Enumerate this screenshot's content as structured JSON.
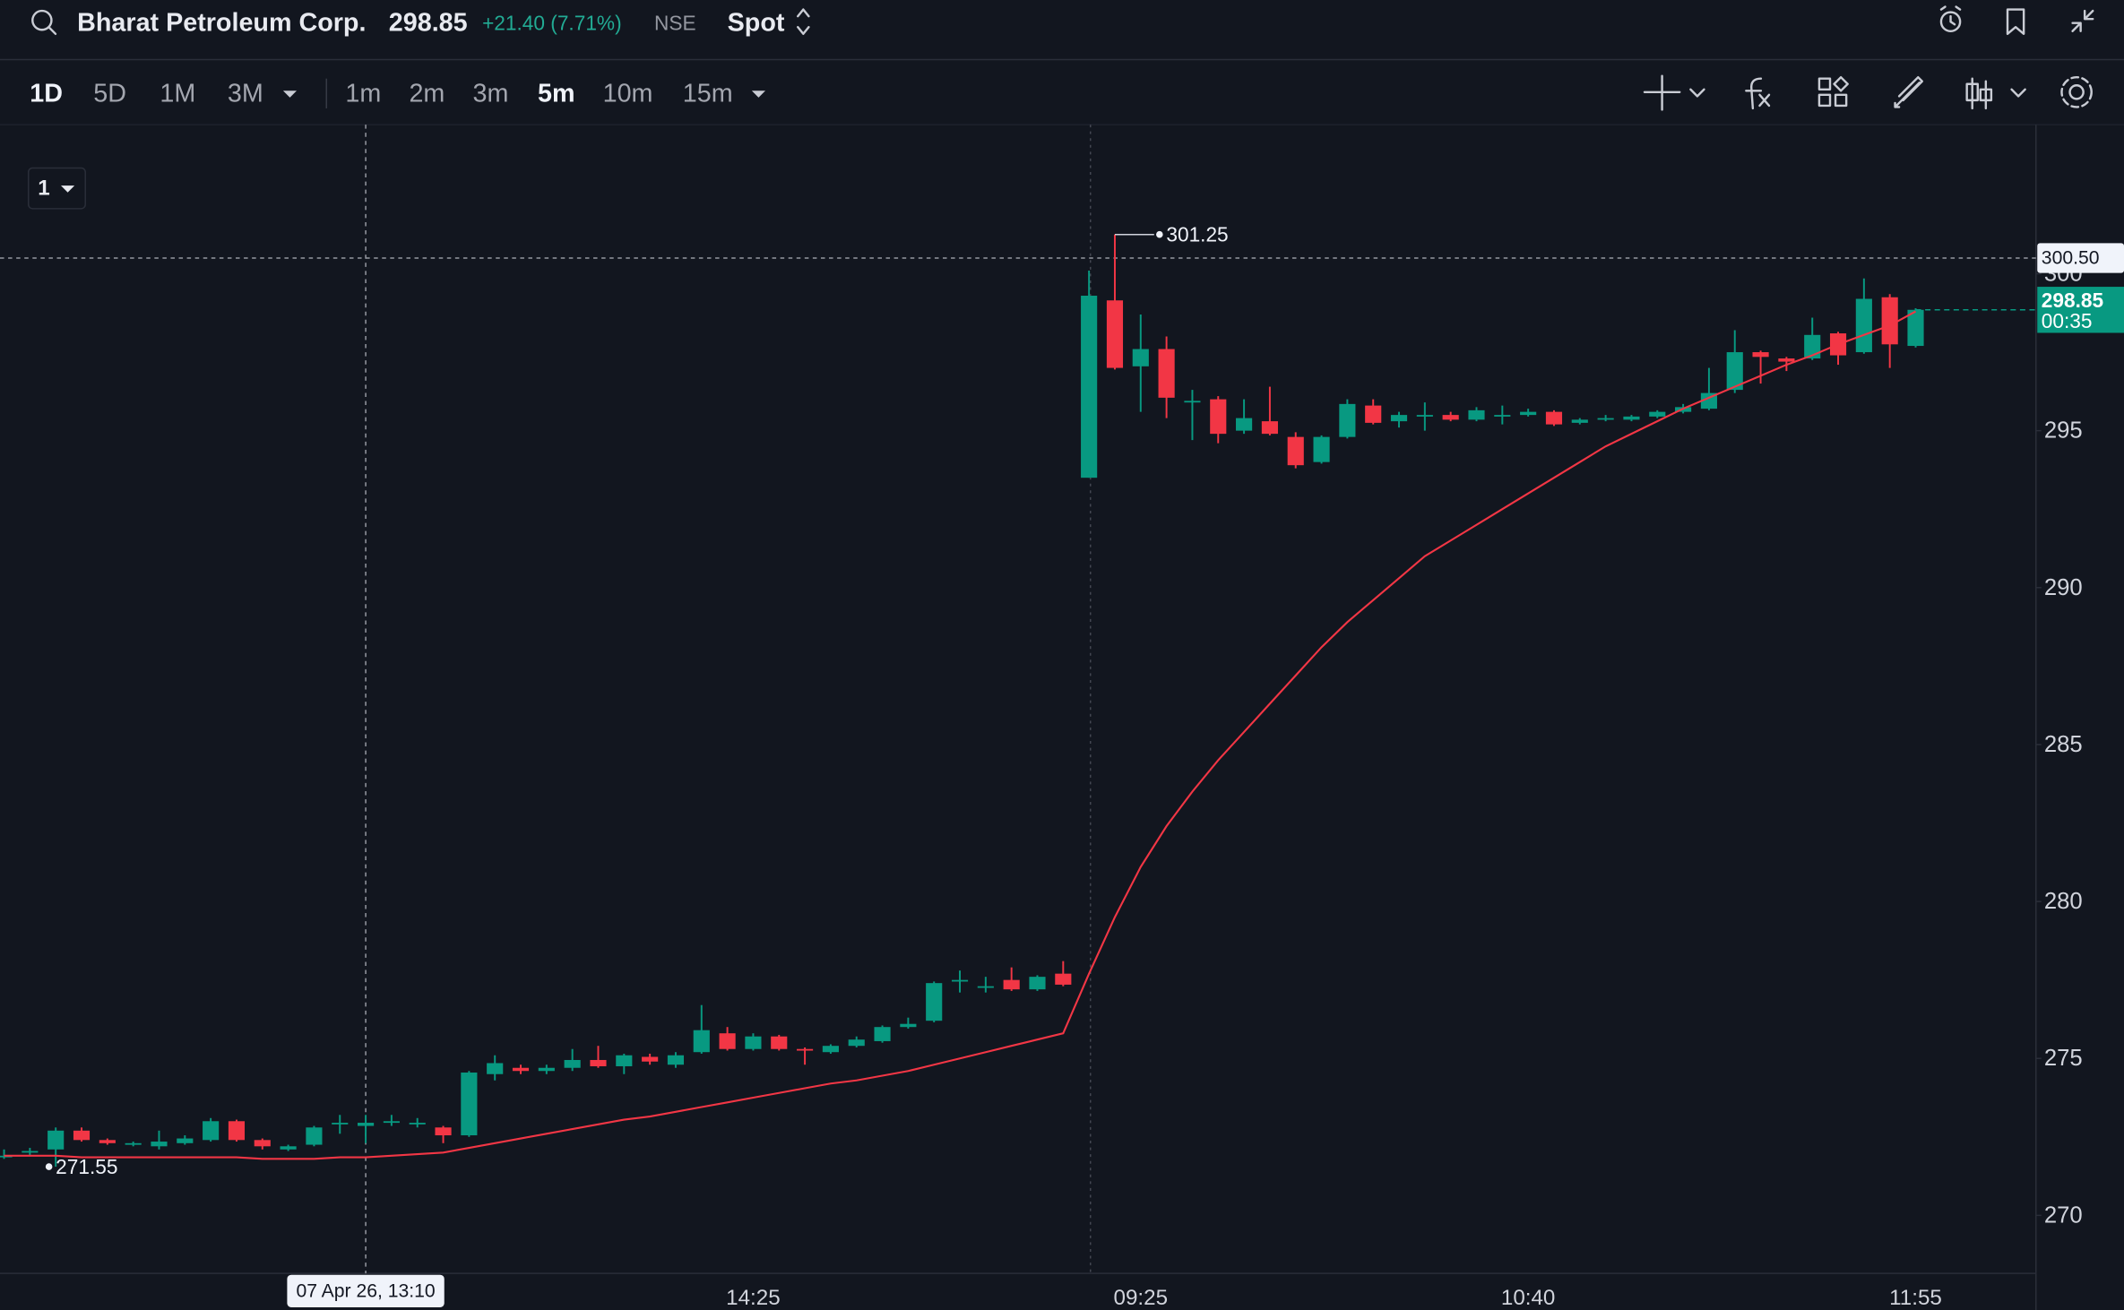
{
  "header": {
    "symbol": "Bharat Petroleum Corp.",
    "price": "298.85",
    "change": "+21.40 (7.71%)",
    "exchange": "NSE",
    "mode": "Spot"
  },
  "toolbar": {
    "ranges": [
      "1D",
      "5D",
      "1M",
      "3M"
    ],
    "intervals": [
      "1m",
      "2m",
      "3m",
      "5m",
      "10m",
      "15m"
    ],
    "pane": "1"
  },
  "chart_data": {
    "type": "candlestick",
    "categories": [
      null,
      null,
      null,
      null,
      null,
      null,
      null,
      null,
      null,
      null,
      null,
      null,
      null,
      null,
      null,
      null,
      null,
      null,
      null,
      null,
      null,
      null,
      null,
      null,
      null,
      null,
      null,
      null,
      null,
      "14:25",
      null,
      null,
      null,
      null,
      null,
      null,
      null,
      null,
      null,
      null,
      null,
      null,
      null,
      null,
      "09:25",
      null,
      null,
      null,
      null,
      null,
      null,
      null,
      null,
      null,
      null,
      null,
      null,
      null,
      null,
      "10:40",
      null,
      null,
      null,
      null,
      null,
      null,
      null,
      null,
      null,
      null,
      null,
      null,
      null,
      null,
      "11:55"
    ],
    "open": [
      271.9,
      272.0,
      272.1,
      272.7,
      272.4,
      272.3,
      272.2,
      272.3,
      272.4,
      273.0,
      272.4,
      272.1,
      272.25,
      272.9,
      272.85,
      273.0,
      272.95,
      272.8,
      272.55,
      274.5,
      274.7,
      274.6,
      274.7,
      274.95,
      274.75,
      275.05,
      274.8,
      275.2,
      275.8,
      275.3,
      275.7,
      275.3,
      275.2,
      275.4,
      275.55,
      276.0,
      276.2,
      277.5,
      277.3,
      277.5,
      277.2,
      277.7,
      293.5,
      299.15,
      297.05,
      297.6,
      295.9,
      296.0,
      295.0,
      295.3,
      294.8,
      294.0,
      294.8,
      295.8,
      295.3,
      295.45,
      295.5,
      295.35,
      295.5,
      295.5,
      295.6,
      295.25,
      295.4,
      295.35,
      295.45,
      295.6,
      295.7,
      296.3,
      297.5,
      297.3,
      297.3,
      298.1,
      297.5,
      299.25,
      297.7
    ],
    "high": [
      272.1,
      272.15,
      272.8,
      272.8,
      272.45,
      272.35,
      272.7,
      272.55,
      273.1,
      273.05,
      272.45,
      272.25,
      272.85,
      273.2,
      273.2,
      273.2,
      273.1,
      272.85,
      274.6,
      275.1,
      274.8,
      274.8,
      275.3,
      275.4,
      275.15,
      275.15,
      275.2,
      276.7,
      276.0,
      275.8,
      275.75,
      275.35,
      275.45,
      275.7,
      276.05,
      276.3,
      277.45,
      277.8,
      277.6,
      277.9,
      277.65,
      278.1,
      300.1,
      301.25,
      298.7,
      298.0,
      296.3,
      296.1,
      296.0,
      296.4,
      294.95,
      294.85,
      296.0,
      296.0,
      295.6,
      295.9,
      295.6,
      295.75,
      295.8,
      295.7,
      295.65,
      295.4,
      295.5,
      295.5,
      295.65,
      295.85,
      297.0,
      298.2,
      297.55,
      297.35,
      298.6,
      298.15,
      299.85,
      299.35,
      298.9
    ],
    "low": [
      271.8,
      271.9,
      271.55,
      272.35,
      272.25,
      272.2,
      272.1,
      272.25,
      272.35,
      272.35,
      272.1,
      272.05,
      272.2,
      272.6,
      272.3,
      272.85,
      272.8,
      272.3,
      272.5,
      274.3,
      274.5,
      274.5,
      274.6,
      274.7,
      274.5,
      274.8,
      274.7,
      275.15,
      275.25,
      275.25,
      275.25,
      274.8,
      275.15,
      275.35,
      275.5,
      275.95,
      276.15,
      277.1,
      277.1,
      277.15,
      277.15,
      277.3,
      293.5,
      296.95,
      295.6,
      295.4,
      294.7,
      294.6,
      294.9,
      294.85,
      293.8,
      293.95,
      294.75,
      295.2,
      295.1,
      295.0,
      295.3,
      295.3,
      295.2,
      295.45,
      295.15,
      295.2,
      295.3,
      295.3,
      295.4,
      295.55,
      295.65,
      296.2,
      296.5,
      296.9,
      297.25,
      297.1,
      297.45,
      297.0,
      297.65
    ],
    "close": [
      271.9,
      272.05,
      272.7,
      272.4,
      272.3,
      272.3,
      272.35,
      272.45,
      273.0,
      272.4,
      272.2,
      272.2,
      272.8,
      272.95,
      272.95,
      273.0,
      272.95,
      272.55,
      274.55,
      274.85,
      274.6,
      274.7,
      274.95,
      274.75,
      275.1,
      274.9,
      275.1,
      275.9,
      275.3,
      275.7,
      275.3,
      275.25,
      275.4,
      275.6,
      276.0,
      276.1,
      277.4,
      277.5,
      277.3,
      277.2,
      277.6,
      277.35,
      299.3,
      297.0,
      297.6,
      296.05,
      295.95,
      294.9,
      295.4,
      294.9,
      293.9,
      294.8,
      295.85,
      295.25,
      295.5,
      295.5,
      295.35,
      295.65,
      295.5,
      295.6,
      295.2,
      295.35,
      295.4,
      295.45,
      295.6,
      295.75,
      296.2,
      297.5,
      297.35,
      297.2,
      298.05,
      297.4,
      299.2,
      297.75,
      298.85
    ],
    "up_color": "#089981",
    "down_color": "#f23645",
    "series": [
      {
        "color": "#f23645",
        "values": [
          271.9,
          271.9,
          271.9,
          271.85,
          271.85,
          271.85,
          271.85,
          271.85,
          271.85,
          271.85,
          271.8,
          271.8,
          271.8,
          271.85,
          271.85,
          271.9,
          271.95,
          272.0,
          272.15,
          272.3,
          272.45,
          272.6,
          272.75,
          272.9,
          273.05,
          273.15,
          273.3,
          273.45,
          273.6,
          273.75,
          273.9,
          274.05,
          274.2,
          274.3,
          274.45,
          274.6,
          274.8,
          275.0,
          275.2,
          275.4,
          275.6,
          275.8,
          277.7,
          279.5,
          281.1,
          282.4,
          283.5,
          284.5,
          285.4,
          286.3,
          287.2,
          288.1,
          288.9,
          289.6,
          290.3,
          291.0,
          291.5,
          292.0,
          292.5,
          293.0,
          293.5,
          294.0,
          294.5,
          294.9,
          295.3,
          295.7,
          296.05,
          296.4,
          296.75,
          297.1,
          297.4,
          297.75,
          298.05,
          298.35,
          298.8
        ]
      }
    ],
    "ylim": [
      268.15,
      304.75
    ],
    "yticks": [
      270,
      275,
      280,
      285,
      290,
      295,
      300
    ],
    "crosshair": {
      "x_label": "07 Apr 26, 13:10",
      "y": {
        "value": 300.5,
        "label": "300.50"
      }
    },
    "countdown": "00:35"
  }
}
